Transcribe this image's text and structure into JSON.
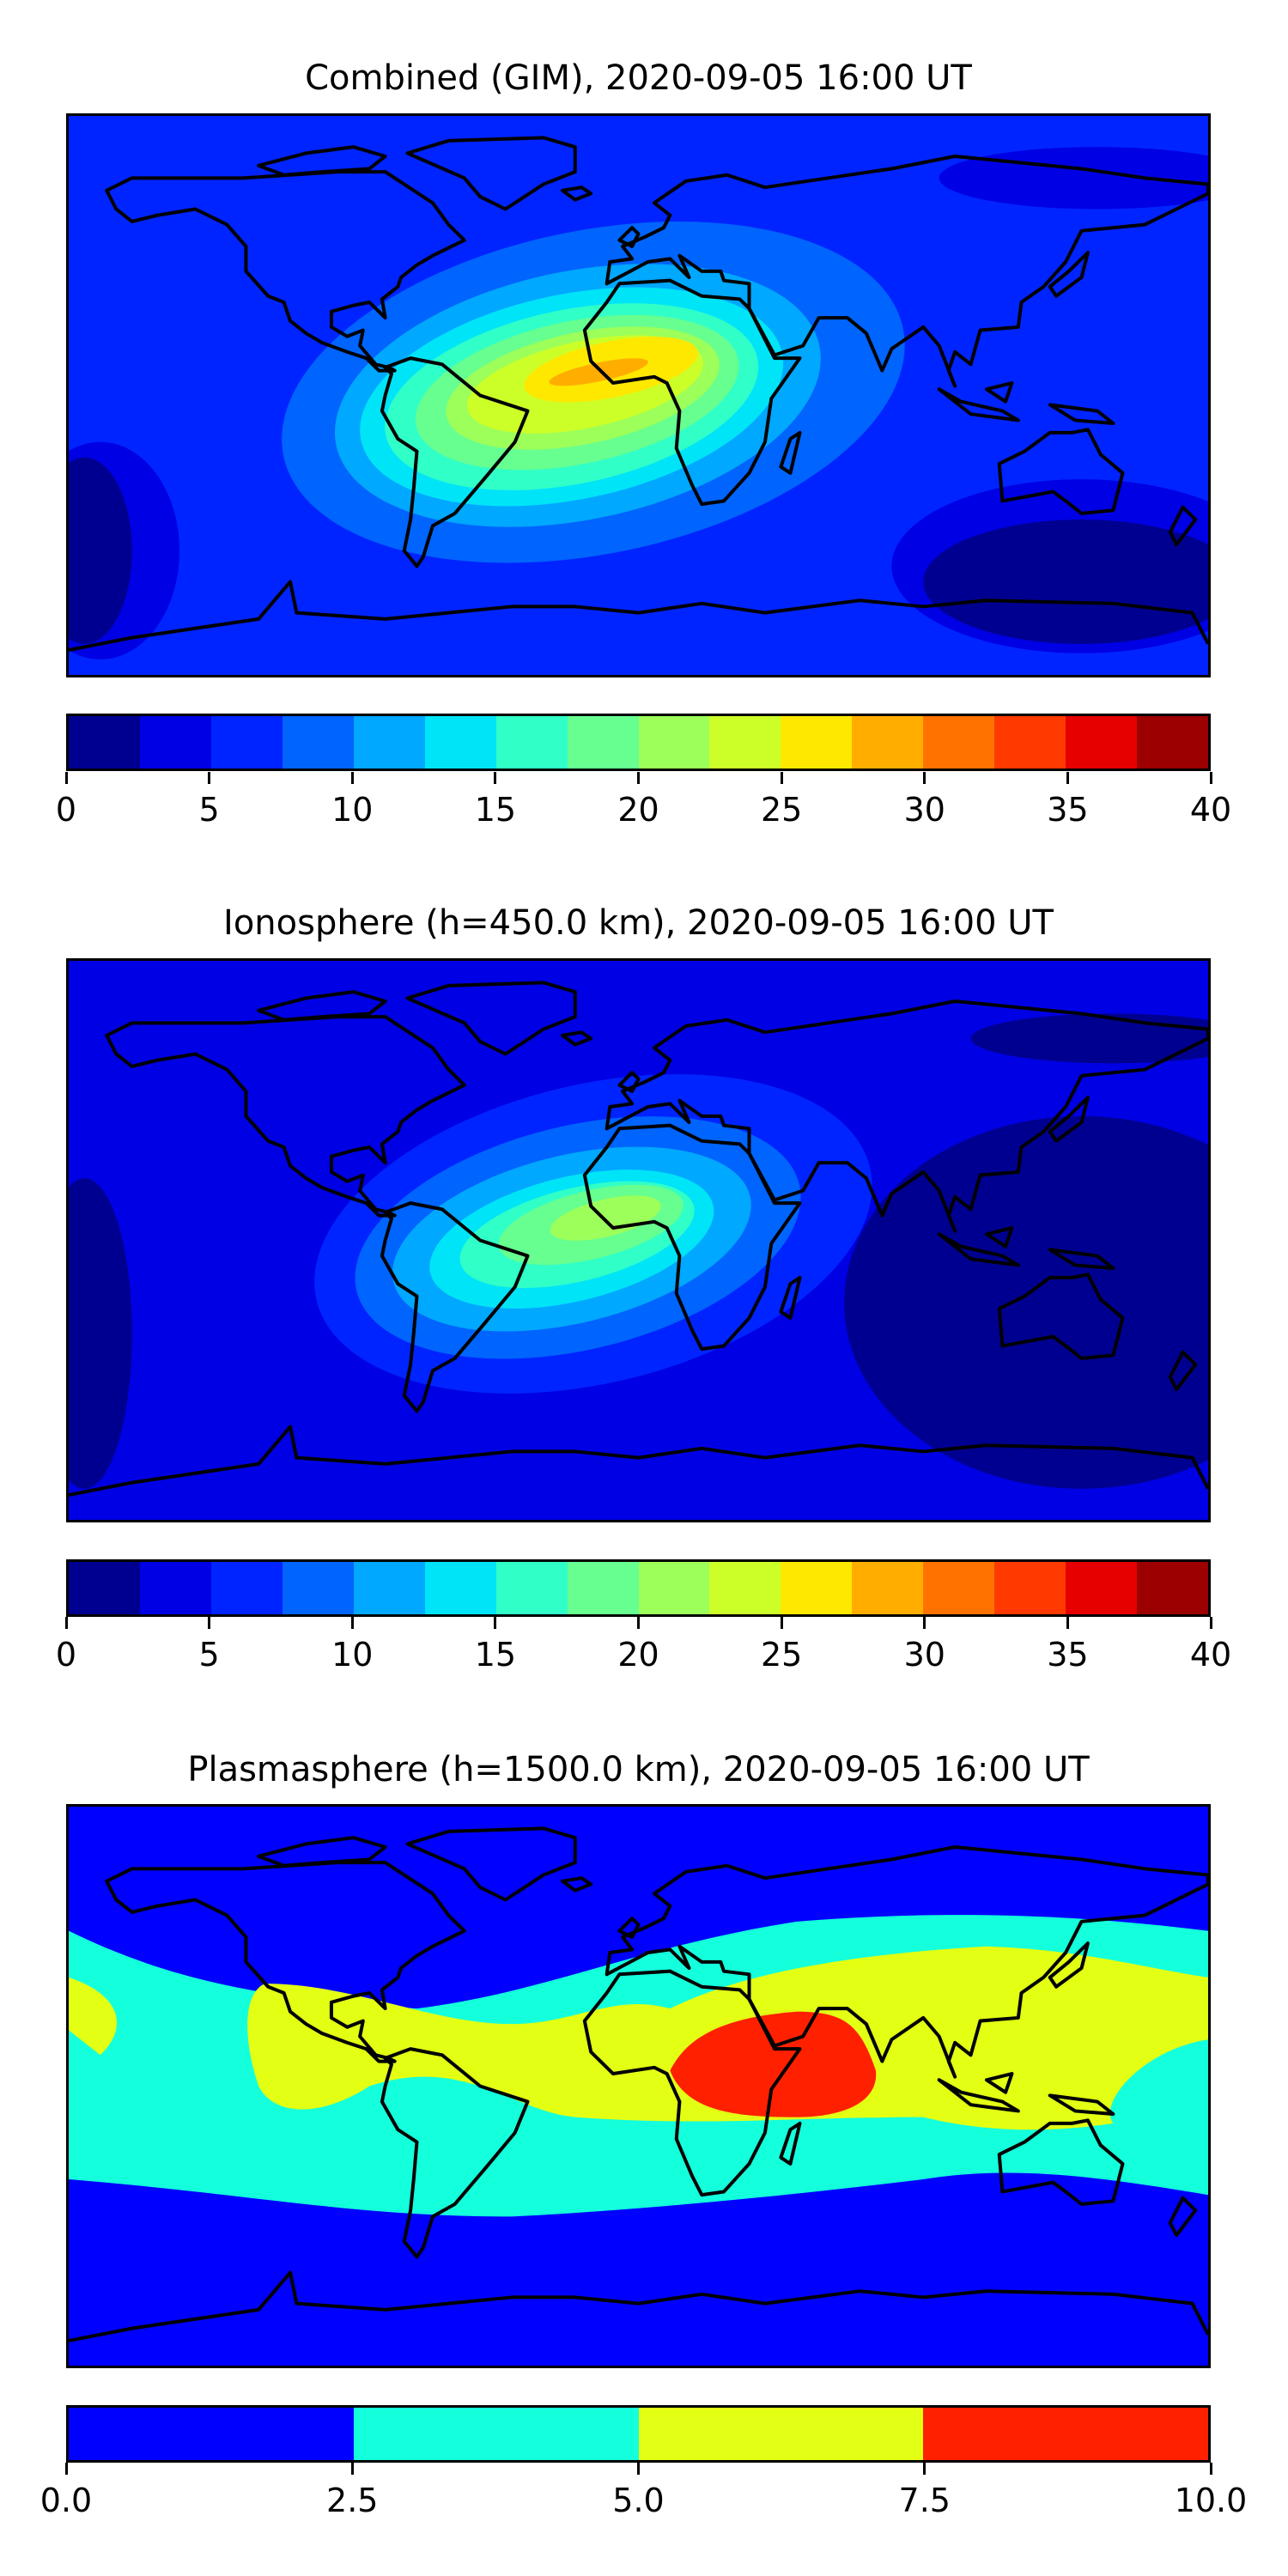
{
  "chart_data": [
    {
      "type": "heatmap",
      "title": "Combined (GIM), 2020-09-05 16:00 UT",
      "colorbar": {
        "range": [
          0,
          40
        ],
        "ticks": [
          "0",
          "5",
          "10",
          "15",
          "20",
          "25",
          "30",
          "35",
          "40"
        ],
        "levels": [
          0,
          2.5,
          5,
          7.5,
          10,
          12.5,
          15,
          17.5,
          20,
          22.5,
          25,
          27.5,
          30,
          32.5,
          35,
          37.5,
          40
        ],
        "colors": [
          "#000090",
          "#0000e4",
          "#0024ff",
          "#0064ff",
          "#00a8ff",
          "#00e4f8",
          "#30ffc8",
          "#66ff90",
          "#9cff5a",
          "#ccff28",
          "#ffe800",
          "#ffae00",
          "#ff7200",
          "#ff3a00",
          "#e60000",
          "#9c0000"
        ]
      },
      "max_region": "tropical Atlantic / West Africa, 27.5-30"
    },
    {
      "type": "heatmap",
      "title": "Ionosphere  (h=450.0 km), 2020-09-05 16:00 UT",
      "colorbar": {
        "range": [
          0,
          40
        ],
        "ticks": [
          "0",
          "5",
          "10",
          "15",
          "20",
          "25",
          "30",
          "35",
          "40"
        ],
        "levels": [
          0,
          2.5,
          5,
          7.5,
          10,
          12.5,
          15,
          17.5,
          20,
          22.5,
          25,
          27.5,
          30,
          32.5,
          35,
          37.5,
          40
        ],
        "colors": [
          "#000090",
          "#0000e4",
          "#0024ff",
          "#0064ff",
          "#00a8ff",
          "#00e4f8",
          "#30ffc8",
          "#66ff90",
          "#9cff5a",
          "#ccff28",
          "#ffe800",
          "#ffae00",
          "#ff7200",
          "#ff3a00",
          "#e60000",
          "#9c0000"
        ]
      },
      "max_region": "tropical Atlantic, 20-22.5"
    },
    {
      "type": "heatmap",
      "title": "Plasmasphere (h=1500.0 km), 2020-09-05 16:00 UT",
      "colorbar": {
        "range": [
          0,
          10
        ],
        "ticks": [
          "0.0",
          "2.5",
          "5.0",
          "7.5",
          "10.0"
        ],
        "levels": [
          0,
          2.5,
          5,
          7.5,
          10
        ],
        "colors": [
          "#0000ff",
          "#14ffdc",
          "#e2ff14",
          "#ff2000"
        ]
      },
      "max_region": "East Africa / Arabian Sea, 7.5-10"
    }
  ]
}
